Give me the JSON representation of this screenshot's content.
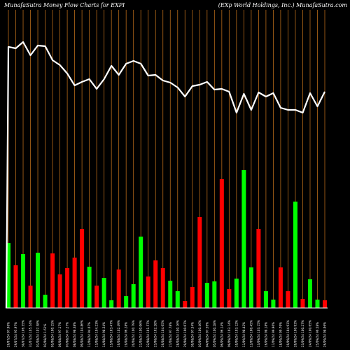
{
  "chart_data": {
    "type": "bar",
    "title_left": "MunafaSutra  Money Flow  Charts for EXPI",
    "title_right": "(EXp World Holdings, Inc.) MunafaSutra.com",
    "colors": {
      "up": "#00ff00",
      "down": "#ff0000",
      "line": "#ffffff",
      "grid": "#b86b1a",
      "background": "#000000"
    },
    "categories": [
      "26/07/24 97.96%",
      "29/07/24 95.97%",
      "30/07/24 106.35%",
      "31/07/24 105.54%",
      "01/08/24 107.58%",
      "02/08/24 1.61%",
      "05/08/24 100.15%",
      "06/08/24 97.17%",
      "07/08/24 97.27%",
      "08/08/24 98.38%",
      "09/08/24 104.86%",
      "12/08/24 94.07%",
      "13/08/24 104.23%",
      "14/08/24 98.34%",
      "15/08/24 103.47%",
      "16/08/24 102.49%",
      "19/08/24 96.28%",
      "20/08/24 100.79%",
      "21/08/24 100.06%",
      "22/08/24 101.57%",
      "23/08/24 102.28%",
      "26/08/24 104.65%",
      "27/08/24 97.78%",
      "28/08/24 100.16%",
      "29/08/24 100.07%",
      "30/08/24 97.54%",
      "03/09/24 100.46%",
      "04/09/24 97.56%",
      "05/09/24 100.28%",
      "06/09/24 96.14%",
      "09/09/24 103.14%",
      "10/09/24 103.12%",
      "11/09/24 98.42%",
      "12/09/24 100.45%",
      "13/09/24 103.15%",
      "16/09/24 98.18%",
      "17/09/24 99.96%",
      "18/09/24 99.79%",
      "19/09/24 104.91%",
      "20/09/24 100.93%",
      "23/09/24 100.27%",
      "24/09/24 100.65%",
      "25/09/24 96.58%",
      "26/09/24 98.96%"
    ],
    "bar_values": [
      93,
      61,
      77,
      32,
      79,
      19,
      78,
      48,
      57,
      72,
      113,
      59,
      32,
      43,
      11,
      55,
      17,
      34,
      102,
      45,
      68,
      57,
      39,
      24,
      10,
      30,
      130,
      36,
      38,
      184,
      27,
      42,
      197,
      58,
      113,
      24,
      12,
      58,
      24,
      152,
      13,
      41,
      12,
      11
    ],
    "bar_colors": [
      "up",
      "down",
      "up",
      "down",
      "up",
      "up",
      "down",
      "down",
      "down",
      "down",
      "down",
      "up",
      "down",
      "up",
      "up",
      "down",
      "up",
      "up",
      "up",
      "down",
      "down",
      "down",
      "up",
      "up",
      "down",
      "down",
      "down",
      "up",
      "up",
      "down",
      "down",
      "up",
      "up",
      "up",
      "down",
      "up",
      "up",
      "down",
      "down",
      "up",
      "down",
      "up",
      "up",
      "down"
    ],
    "line_values": [
      373,
      371,
      380,
      361,
      375,
      374,
      354,
      347,
      335,
      318,
      323,
      327,
      313,
      327,
      346,
      333,
      349,
      353,
      349,
      332,
      333,
      325,
      322,
      315,
      302,
      317,
      319,
      323,
      312,
      313,
      309,
      279,
      306,
      283,
      308,
      302,
      307,
      286,
      283,
      283,
      279,
      307,
      288,
      309
    ],
    "line_values_ordered": true,
    "note_line": ""
  }
}
